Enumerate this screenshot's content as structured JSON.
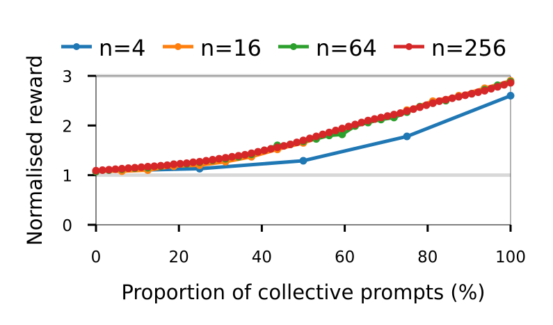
{
  "chart_data": {
    "type": "line",
    "title": "",
    "xlabel": "Proportion of collective prompts (%)",
    "ylabel": "Normalised reward",
    "xlim": [
      0,
      100
    ],
    "ylim": [
      0,
      3
    ],
    "xticks": [
      "0",
      "20",
      "40",
      "60",
      "80",
      "100"
    ],
    "yticks": [
      "0",
      "1",
      "2",
      "3"
    ],
    "reference_lines": [
      1,
      3
    ],
    "legend_position": "top",
    "series": [
      {
        "name": "n=4",
        "color": "#1f77b4",
        "x": [
          0,
          25,
          50,
          75,
          100
        ],
        "y": [
          1.08,
          1.13,
          1.29,
          1.78,
          2.6
        ]
      },
      {
        "name": "n=16",
        "color": "#ff7f0e",
        "x": [
          0,
          6.25,
          12.5,
          18.75,
          25,
          31.25,
          37.5,
          43.75,
          50,
          56.25,
          62.5,
          68.75,
          75,
          81.25,
          87.5,
          93.75,
          100
        ],
        "y": [
          1.08,
          1.08,
          1.1,
          1.18,
          1.2,
          1.27,
          1.37,
          1.52,
          1.65,
          1.82,
          1.99,
          2.13,
          2.31,
          2.49,
          2.6,
          2.75,
          2.9
        ]
      },
      {
        "name": "n=64",
        "color": "#2ca02c",
        "x": [
          0,
          3.125,
          6.25,
          9.375,
          12.5,
          15.625,
          18.75,
          21.875,
          25,
          28.125,
          31.25,
          34.375,
          37.5,
          40.625,
          43.75,
          46.875,
          50,
          53.125,
          56.25,
          59.375,
          62.5,
          65.625,
          68.75,
          71.875,
          75,
          78.125,
          81.25,
          84.375,
          87.5,
          90.625,
          93.75,
          96.875,
          100
        ],
        "y": [
          1.07,
          1.1,
          1.12,
          1.14,
          1.15,
          1.18,
          1.22,
          1.23,
          1.26,
          1.3,
          1.33,
          1.37,
          1.42,
          1.5,
          1.6,
          1.62,
          1.68,
          1.73,
          1.8,
          1.82,
          1.99,
          2.06,
          2.12,
          2.16,
          2.27,
          2.38,
          2.45,
          2.5,
          2.58,
          2.64,
          2.72,
          2.81,
          2.88
        ]
      },
      {
        "name": "n=256",
        "color": "#d62728",
        "x": [
          0,
          1.5625,
          3.125,
          4.6875,
          6.25,
          7.8125,
          9.375,
          10.9375,
          12.5,
          14.0625,
          15.625,
          17.1875,
          18.75,
          20.3125,
          21.875,
          23.4375,
          25,
          26.5625,
          28.125,
          29.6875,
          31.25,
          32.8125,
          34.375,
          35.9375,
          37.5,
          39.0625,
          40.625,
          42.1875,
          43.75,
          45.3125,
          46.875,
          48.4375,
          50,
          51.5625,
          53.125,
          54.6875,
          56.25,
          57.8125,
          59.375,
          60.9375,
          62.5,
          64.0625,
          65.625,
          67.1875,
          68.75,
          70.3125,
          71.875,
          73.4375,
          75,
          76.5625,
          78.125,
          79.6875,
          81.25,
          82.8125,
          84.375,
          85.9375,
          87.5,
          89.0625,
          90.625,
          92.1875,
          93.75,
          95.3125,
          96.875,
          98.4375,
          100
        ],
        "y": [
          1.09,
          1.1,
          1.11,
          1.12,
          1.13,
          1.14,
          1.15,
          1.16,
          1.17,
          1.18,
          1.19,
          1.2,
          1.22,
          1.23,
          1.24,
          1.26,
          1.27,
          1.29,
          1.31,
          1.33,
          1.35,
          1.37,
          1.39,
          1.41,
          1.44,
          1.47,
          1.5,
          1.53,
          1.56,
          1.59,
          1.62,
          1.66,
          1.7,
          1.74,
          1.78,
          1.82,
          1.86,
          1.9,
          1.94,
          1.98,
          2.02,
          2.06,
          2.1,
          2.13,
          2.16,
          2.19,
          2.22,
          2.25,
          2.29,
          2.33,
          2.37,
          2.41,
          2.45,
          2.49,
          2.52,
          2.55,
          2.58,
          2.61,
          2.64,
          2.67,
          2.7,
          2.74,
          2.78,
          2.82,
          2.86
        ]
      }
    ]
  }
}
